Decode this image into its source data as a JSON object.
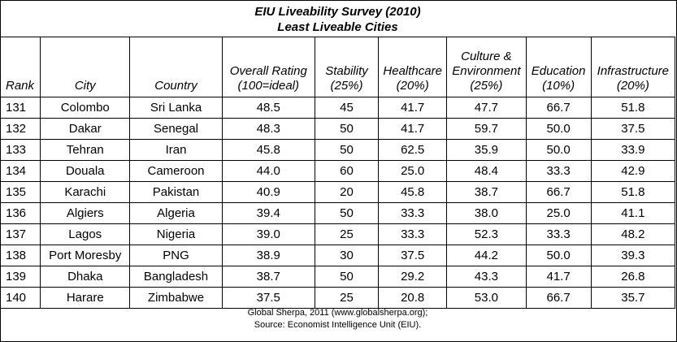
{
  "title": {
    "line1": "EIU Liveability Survey (2010)",
    "line2": "Least Liveable Cities"
  },
  "headers": [
    {
      "key": "rank",
      "lines": [
        "Rank"
      ]
    },
    {
      "key": "city",
      "lines": [
        "City"
      ]
    },
    {
      "key": "country",
      "lines": [
        "Country"
      ]
    },
    {
      "key": "overall",
      "lines": [
        "Overall Rating",
        "(100=ideal)"
      ]
    },
    {
      "key": "stability",
      "lines": [
        "Stability",
        "(25%)"
      ]
    },
    {
      "key": "healthcare",
      "lines": [
        "Healthcare",
        "(20%)"
      ]
    },
    {
      "key": "culture",
      "lines": [
        "Culture &",
        "Environment",
        "(25%)"
      ]
    },
    {
      "key": "education",
      "lines": [
        "Education",
        "(10%)"
      ]
    },
    {
      "key": "infrastructure",
      "lines": [
        "Infrastructure",
        "(20%)"
      ]
    }
  ],
  "rows": [
    [
      "131",
      "Colombo",
      "Sri Lanka",
      "48.5",
      "45",
      "41.7",
      "47.7",
      "66.7",
      "51.8"
    ],
    [
      "132",
      "Dakar",
      "Senegal",
      "48.3",
      "50",
      "41.7",
      "59.7",
      "50.0",
      "37.5"
    ],
    [
      "133",
      "Tehran",
      "Iran",
      "45.8",
      "50",
      "62.5",
      "35.9",
      "50.0",
      "33.9"
    ],
    [
      "134",
      "Douala",
      "Cameroon",
      "44.0",
      "60",
      "25.0",
      "48.4",
      "33.3",
      "42.9"
    ],
    [
      "135",
      "Karachi",
      "Pakistan",
      "40.9",
      "20",
      "45.8",
      "38.7",
      "66.7",
      "51.8"
    ],
    [
      "136",
      "Algiers",
      "Algeria",
      "39.4",
      "50",
      "33.3",
      "38.0",
      "25.0",
      "41.1"
    ],
    [
      "137",
      "Lagos",
      "Nigeria",
      "39.0",
      "25",
      "33.3",
      "52.3",
      "33.3",
      "48.2"
    ],
    [
      "138",
      "Port Moresby",
      "PNG",
      "38.9",
      "30",
      "37.5",
      "44.2",
      "50.0",
      "39.3"
    ],
    [
      "139",
      "Dhaka",
      "Bangladesh",
      "38.7",
      "50",
      "29.2",
      "43.3",
      "41.7",
      "26.8"
    ],
    [
      "140",
      "Harare",
      "Zimbabwe",
      "37.5",
      "25",
      "20.8",
      "53.0",
      "66.7",
      "35.7"
    ]
  ],
  "footer": {
    "line1": "Global Sherpa, 2011 (www.globalsherpa.org);",
    "line2": "Source: Economist Intelligence Unit (EIU)."
  }
}
